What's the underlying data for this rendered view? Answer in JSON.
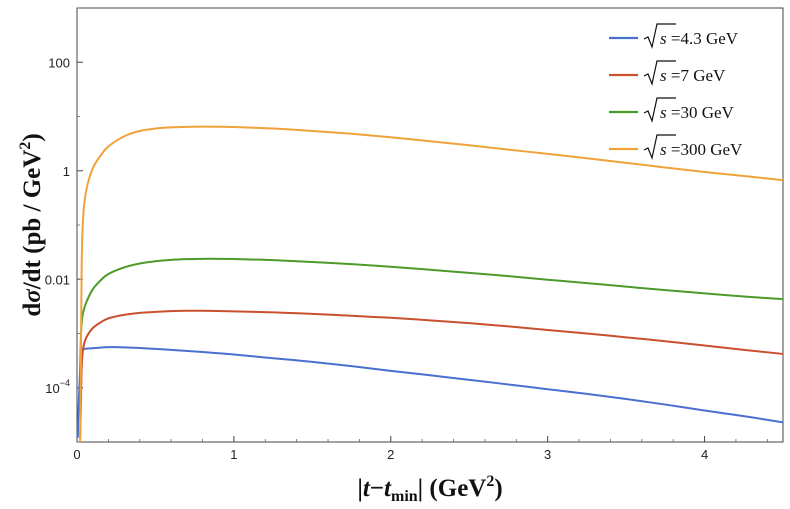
{
  "chart_data": {
    "type": "line",
    "title": "",
    "xlabel_parts": {
      "bar_open": "|",
      "t": "t",
      "minus": "−",
      "t2": "t",
      "sub": "min",
      "bar_close": "|",
      "unit_open": " (GeV",
      "sup": "2",
      "unit_close": ")"
    },
    "ylabel_parts": {
      "d": "d",
      "sigma": "σ",
      "rest": "/dt (pb / GeV",
      "sup": "2",
      "close": ")"
    },
    "xlim": [
      0,
      4.5
    ],
    "ylim": [
      1e-05,
      1000
    ],
    "yscale": "log",
    "x_ticks": [
      {
        "value": 0,
        "label": "0"
      },
      {
        "value": 1,
        "label": "1"
      },
      {
        "value": 2,
        "label": "2"
      },
      {
        "value": 3,
        "label": "3"
      },
      {
        "value": 4,
        "label": "4"
      }
    ],
    "y_ticks": [
      {
        "value": 0.0001,
        "base": "10",
        "exp": "−4"
      },
      {
        "value": 0.01,
        "label": "0.01"
      },
      {
        "value": 1,
        "label": "1"
      },
      {
        "value": 100,
        "label": "100"
      }
    ],
    "grid": false,
    "legend_position": "top-right",
    "series": [
      {
        "name_prefix": "s",
        "name_suffix": " =4.3 GeV",
        "color": "#4a6fd1",
        "x": [
          0.005,
          0.01,
          0.02,
          0.03,
          0.05,
          0.1,
          0.15,
          0.2,
          0.25,
          0.3,
          0.4,
          0.5,
          0.6,
          0.8,
          1.0,
          1.25,
          1.5,
          1.75,
          2.0,
          2.25,
          2.5,
          2.75,
          3.0,
          3.25,
          3.5,
          3.75,
          4.0,
          4.25,
          4.5
        ],
        "y": [
          1.2e-05,
          4e-05,
          0.0002,
          0.00048,
          0.00052,
          0.000535,
          0.00055,
          0.00056,
          0.00056,
          0.000555,
          0.00054,
          0.00052,
          0.0005,
          0.000455,
          0.00041,
          0.00035,
          0.0003,
          0.00025,
          0.000205,
          0.00017,
          0.00014,
          0.000115,
          9.4e-05,
          7.7e-05,
          6.2e-05,
          4.9e-05,
          3.8e-05,
          3e-05,
          2.3e-05
        ]
      },
      {
        "name_prefix": "s",
        "name_suffix": " =7 GeV",
        "color": "#c9502e",
        "x": [
          0.02,
          0.025,
          0.03,
          0.04,
          0.06,
          0.1,
          0.15,
          0.2,
          0.3,
          0.4,
          0.5,
          0.6,
          0.7,
          0.8,
          0.9,
          1.0,
          1.25,
          1.5,
          1.75,
          2.0,
          2.25,
          2.5,
          2.75,
          3.0,
          3.25,
          3.5,
          3.75,
          4.0,
          4.25,
          4.5
        ],
        "y": [
          1.2e-05,
          5e-05,
          0.00025,
          0.00055,
          0.00085,
          0.00125,
          0.0016,
          0.0019,
          0.0022,
          0.0024,
          0.0025,
          0.00258,
          0.00262,
          0.00262,
          0.0026,
          0.00256,
          0.00245,
          0.0023,
          0.00212,
          0.00195,
          0.00175,
          0.00155,
          0.00135,
          0.00116,
          0.001,
          0.00085,
          0.00072,
          0.0006,
          0.0005,
          0.00042
        ]
      },
      {
        "name_prefix": "s",
        "name_suffix": " =30 GeV",
        "color": "#4c9a2a",
        "x": [
          0.02,
          0.025,
          0.03,
          0.04,
          0.06,
          0.1,
          0.15,
          0.2,
          0.3,
          0.4,
          0.5,
          0.6,
          0.7,
          0.8,
          0.9,
          1.0,
          1.25,
          1.5,
          1.75,
          2.0,
          2.25,
          2.5,
          2.75,
          3.0,
          3.25,
          3.5,
          3.75,
          4.0,
          4.25,
          4.5
        ],
        "y": [
          0.0002,
          0.0009,
          0.0016,
          0.0025,
          0.0038,
          0.0065,
          0.0095,
          0.0125,
          0.0165,
          0.0195,
          0.0215,
          0.0228,
          0.0235,
          0.0238,
          0.0238,
          0.0236,
          0.0225,
          0.0208,
          0.019,
          0.017,
          0.015,
          0.0131,
          0.0114,
          0.0098,
          0.0085,
          0.0073,
          0.0063,
          0.0055,
          0.0048,
          0.0043
        ]
      },
      {
        "name_prefix": "s",
        "name_suffix": " =300 GeV",
        "color": "#f0a23a",
        "x": [
          0.02,
          0.025,
          0.03,
          0.04,
          0.06,
          0.1,
          0.15,
          0.2,
          0.3,
          0.4,
          0.5,
          0.6,
          0.7,
          0.8,
          0.9,
          1.0,
          1.25,
          1.5,
          1.75,
          2.0,
          2.25,
          2.5,
          2.75,
          3.0,
          3.25,
          3.5,
          3.75,
          4.0,
          4.25,
          4.5
        ],
        "y": [
          1e-05,
          0.0003,
          0.02,
          0.15,
          0.45,
          1.1,
          1.9,
          2.8,
          4.3,
          5.4,
          6.0,
          6.3,
          6.45,
          6.5,
          6.48,
          6.4,
          6.0,
          5.4,
          4.8,
          4.15,
          3.5,
          2.95,
          2.45,
          2.05,
          1.7,
          1.4,
          1.15,
          0.95,
          0.8,
          0.67
        ]
      }
    ]
  }
}
